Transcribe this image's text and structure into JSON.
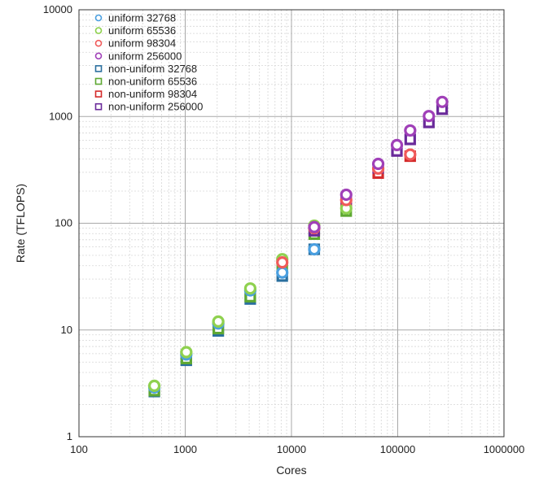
{
  "chart_data": {
    "type": "scatter",
    "title": "",
    "xlabel": "Cores",
    "ylabel": "Rate (TFLOPS)",
    "xscale": "log",
    "yscale": "log",
    "xlim": [
      100,
      1000000
    ],
    "ylim": [
      1,
      10000
    ],
    "xticks": [
      100,
      1000,
      10000,
      100000,
      1000000
    ],
    "xtick_labels": [
      "100",
      "1000",
      "10000",
      "100000",
      "1000000"
    ],
    "yticks": [
      1,
      10,
      100,
      1000,
      10000
    ],
    "ytick_labels": [
      "1",
      "10",
      "100",
      "1000",
      "10000"
    ],
    "grid": true,
    "minor_grid": true,
    "legend_position": "top-left",
    "series": [
      {
        "name": "uniform 32768",
        "marker": "circle",
        "color": "#4a9fe0",
        "points": [
          [
            512,
            2.9
          ],
          [
            1024,
            5.9
          ],
          [
            2048,
            11.5
          ],
          [
            4096,
            23.5
          ],
          [
            8192,
            34.5
          ],
          [
            16384,
            57
          ]
        ]
      },
      {
        "name": "uniform 65536",
        "marker": "circle",
        "color": "#8fd14f",
        "points": [
          [
            512,
            3.0
          ],
          [
            1024,
            6.2
          ],
          [
            2048,
            12.0
          ],
          [
            4096,
            24.5
          ],
          [
            8192,
            46
          ],
          [
            16384,
            95
          ],
          [
            32768,
            138
          ]
        ]
      },
      {
        "name": "uniform 98304",
        "marker": "circle",
        "color": "#f05a5a",
        "points": [
          [
            8192,
            43
          ],
          [
            16384,
            90
          ],
          [
            32768,
            165
          ],
          [
            65536,
            325
          ],
          [
            131072,
            440
          ]
        ]
      },
      {
        "name": "uniform 256000",
        "marker": "circle",
        "color": "#a040b8",
        "points": [
          [
            16384,
            92
          ],
          [
            32768,
            185
          ],
          [
            65536,
            360
          ],
          [
            98304,
            540
          ],
          [
            131072,
            740
          ],
          [
            196608,
            1010
          ],
          [
            262144,
            1370
          ]
        ]
      },
      {
        "name": "non-uniform 32768",
        "marker": "square",
        "color": "#2a6f9e",
        "points": [
          [
            512,
            2.65
          ],
          [
            1024,
            5.2
          ],
          [
            2048,
            9.8
          ],
          [
            4096,
            19.5
          ],
          [
            8192,
            32
          ],
          [
            16384,
            57
          ]
        ]
      },
      {
        "name": "non-uniform 65536",
        "marker": "square",
        "color": "#5ea832",
        "points": [
          [
            512,
            2.7
          ],
          [
            1024,
            5.4
          ],
          [
            2048,
            10.3
          ],
          [
            4096,
            20.5
          ],
          [
            8192,
            40
          ],
          [
            16384,
            79
          ],
          [
            32768,
            130
          ]
        ]
      },
      {
        "name": "non-uniform 98304",
        "marker": "square",
        "color": "#d42a2a",
        "points": [
          [
            32768,
            150
          ],
          [
            65536,
            295
          ],
          [
            131072,
            425
          ]
        ]
      },
      {
        "name": "non-uniform 256000",
        "marker": "square",
        "color": "#6a2a9a",
        "points": [
          [
            16384,
            85
          ],
          [
            32768,
            170
          ],
          [
            65536,
            330
          ],
          [
            98304,
            475
          ],
          [
            131072,
            610
          ],
          [
            196608,
            880
          ],
          [
            262144,
            1170
          ]
        ]
      }
    ]
  }
}
